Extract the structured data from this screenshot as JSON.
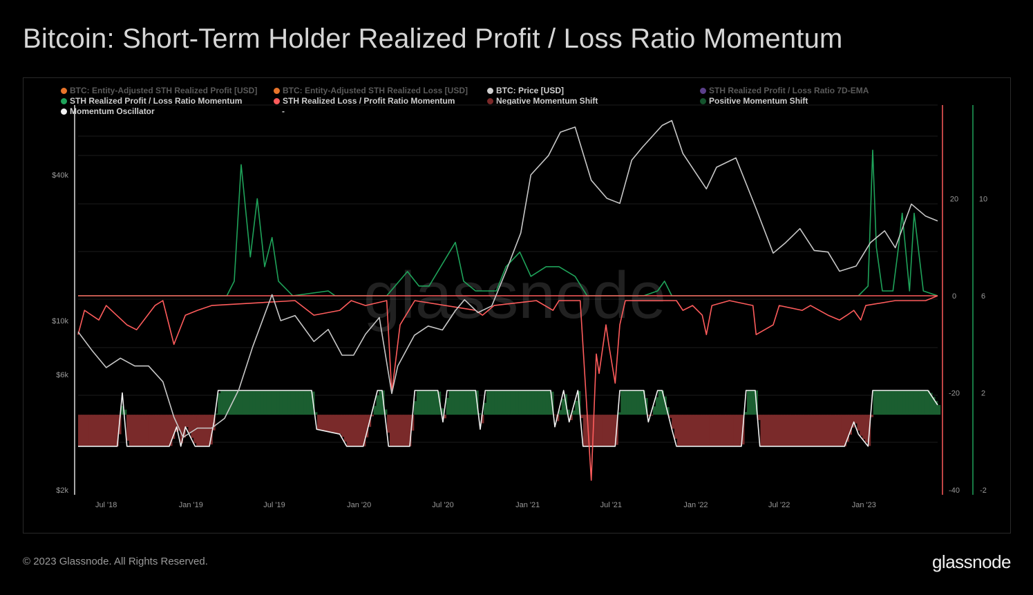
{
  "header": {
    "title": "Bitcoin: Short-Term Holder Realized Profit / Loss Ratio Momentum"
  },
  "legend": [
    {
      "label": "BTC: Entity-Adjusted STH Realized Profit [USD]",
      "color": "#e8742a",
      "dim": true
    },
    {
      "label": "BTC: Entity-Adjusted STH Realized Loss [USD]",
      "color": "#e8742a",
      "dim": true
    },
    {
      "label": "BTC: Price [USD]",
      "color": "#cfcfcf",
      "dim": false
    },
    {
      "label": "STH Realized Profit / Loss Ratio 7D-EMA",
      "color": "#5b3f8a",
      "dim": true
    },
    {
      "label": "STH Realized Profit / Loss Ratio Momentum",
      "color": "#1fa35a",
      "dim": false
    },
    {
      "label": "STH Realized Loss / Profit Ratio Momentum",
      "color": "#ff5c5c",
      "dim": false
    },
    {
      "label": "Negative Momentum Shift",
      "color": "#7a2828",
      "dim": false
    },
    {
      "label": "Positive Momentum Shift",
      "color": "#14532d",
      "dim": false
    },
    {
      "label": "Momentum Oscillator",
      "color": "#f2f2f2",
      "dim": false
    },
    {
      "label": "-",
      "color": "",
      "dim": false
    }
  ],
  "watermark": "glassnode",
  "footer": {
    "copyright": "© 2023 Glassnode. All Rights Reserved.",
    "logo": "glassnode"
  },
  "colors": {
    "price": "#c8c8c8",
    "profit_momentum": "#1fa35a",
    "loss_momentum": "#ff5c5c",
    "negative_shift": "#7a2a2a",
    "positive_shift": "#1b5e30",
    "oscillator": "#f2f2f2",
    "right_axis_red": "#ff5c5c",
    "right_axis_green": "#1fa35a"
  },
  "chart_data": {
    "type": "line",
    "x_ticks": [
      "Jul '18",
      "Jan '19",
      "Jul '19",
      "Jan '20",
      "Jul '20",
      "Jan '21",
      "Jul '21",
      "Jan '22",
      "Jul '22",
      "Jan '23"
    ],
    "x_range": [
      "2018-05-01",
      "2023-06-10"
    ],
    "left_axis": {
      "scale": "log",
      "ticks": [
        "$2k",
        "$6k",
        "$10k",
        "$40k"
      ],
      "tick_values": [
        2000,
        6000,
        10000,
        40000
      ]
    },
    "right_axis_1": {
      "ticks": [
        "20",
        "0",
        "-20",
        "-40"
      ],
      "tick_values": [
        20,
        0,
        -20,
        -40
      ],
      "ylim": [
        -40,
        40
      ]
    },
    "right_axis_2": {
      "ticks": [
        "10",
        "6",
        "2",
        "-2"
      ],
      "tick_values": [
        10,
        6,
        2,
        -2
      ],
      "ylim": [
        -2,
        14
      ]
    },
    "series": [
      {
        "name": "BTC: Price [USD]",
        "axis": "left",
        "x": [
          "2018-05-01",
          "2018-06-01",
          "2018-07-01",
          "2018-08-01",
          "2018-09-01",
          "2018-10-01",
          "2018-11-01",
          "2018-11-25",
          "2018-12-15",
          "2019-01-15",
          "2019-02-15",
          "2019-03-15",
          "2019-04-15",
          "2019-05-15",
          "2019-06-26",
          "2019-07-15",
          "2019-08-15",
          "2019-09-25",
          "2019-10-26",
          "2019-11-25",
          "2019-12-20",
          "2020-01-15",
          "2020-02-14",
          "2020-03-12",
          "2020-03-25",
          "2020-04-30",
          "2020-05-30",
          "2020-06-30",
          "2020-07-28",
          "2020-08-17",
          "2020-09-15",
          "2020-10-15",
          "2020-11-15",
          "2020-12-17",
          "2021-01-08",
          "2021-02-15",
          "2021-03-13",
          "2021-04-14",
          "2021-05-19",
          "2021-06-22",
          "2021-07-20",
          "2021-08-15",
          "2021-09-07",
          "2021-10-20",
          "2021-11-10",
          "2021-12-04",
          "2022-01-24",
          "2022-02-15",
          "2022-03-29",
          "2022-05-12",
          "2022-06-18",
          "2022-07-15",
          "2022-08-15",
          "2022-09-15",
          "2022-10-15",
          "2022-11-09",
          "2022-12-15",
          "2023-01-15",
          "2023-02-15",
          "2023-03-10",
          "2023-04-14",
          "2023-05-15",
          "2023-06-10"
        ],
        "values": [
          9000,
          7500,
          6400,
          7000,
          6500,
          6500,
          5600,
          4000,
          3300,
          3600,
          3600,
          3950,
          5200,
          7800,
          12800,
          10000,
          10500,
          8200,
          9200,
          7200,
          7200,
          8800,
          10300,
          5000,
          6500,
          8700,
          9500,
          9150,
          11000,
          12200,
          10800,
          11500,
          16000,
          23000,
          40000,
          48000,
          60000,
          63000,
          38000,
          32000,
          30500,
          46000,
          52000,
          64000,
          67000,
          49000,
          35000,
          43000,
          47000,
          29000,
          19000,
          21000,
          24000,
          19500,
          19200,
          16000,
          16800,
          21000,
          23500,
          20000,
          30300,
          27000,
          25800
        ]
      },
      {
        "name": "STH Realized Profit / Loss Ratio Momentum",
        "axis": "right_axis_1",
        "x": [
          "2018-05-01",
          "2019-03-20",
          "2019-04-05",
          "2019-04-20",
          "2019-05-10",
          "2019-05-25",
          "2019-06-10",
          "2019-06-26",
          "2019-07-10",
          "2019-08-10",
          "2019-10-26",
          "2019-11-10",
          "2020-03-01",
          "2020-04-15",
          "2020-05-10",
          "2020-06-01",
          "2020-07-28",
          "2020-08-15",
          "2020-09-10",
          "2020-10-25",
          "2020-11-15",
          "2020-12-15",
          "2021-01-08",
          "2021-02-10",
          "2021-03-10",
          "2021-04-14",
          "2021-05-10",
          "2021-09-10",
          "2021-10-10",
          "2021-10-25",
          "2021-11-10",
          "2022-01-01",
          "2022-12-20",
          "2023-01-10",
          "2023-01-20",
          "2023-01-28",
          "2023-02-10",
          "2023-03-05",
          "2023-03-17",
          "2023-03-25",
          "2023-04-10",
          "2023-04-20",
          "2023-05-10",
          "2023-06-10"
        ],
        "values": [
          0,
          0,
          3,
          27,
          8,
          20,
          6,
          12,
          3,
          0,
          1,
          0,
          0,
          5,
          2,
          2,
          11,
          3,
          1,
          1,
          6,
          9,
          4,
          6,
          6,
          4,
          0,
          0,
          1,
          3,
          0,
          0,
          0,
          2,
          30,
          10,
          1,
          1,
          10,
          17,
          1,
          17,
          1,
          0
        ]
      },
      {
        "name": "STH Realized Loss / Profit Ratio Momentum",
        "axis": "right_axis_1",
        "x": [
          "2018-05-01",
          "2018-05-15",
          "2018-06-15",
          "2018-07-01",
          "2018-08-15",
          "2018-09-05",
          "2018-10-15",
          "2018-11-01",
          "2018-11-25",
          "2018-12-20",
          "2019-01-15",
          "2019-02-15",
          "2019-08-15",
          "2019-09-25",
          "2019-11-20",
          "2019-12-15",
          "2020-01-15",
          "2020-03-01",
          "2020-03-12",
          "2020-03-30",
          "2020-05-01",
          "2020-09-10",
          "2020-09-25",
          "2020-10-20",
          "2021-01-20",
          "2021-02-25",
          "2021-03-10",
          "2021-04-25",
          "2021-05-19",
          "2021-05-30",
          "2021-06-05",
          "2021-06-20",
          "2021-06-26",
          "2021-07-10",
          "2021-07-20",
          "2021-08-01",
          "2021-11-20",
          "2021-12-04",
          "2021-12-25",
          "2022-01-15",
          "2022-01-24",
          "2022-02-05",
          "2022-03-15",
          "2022-05-05",
          "2022-05-12",
          "2022-06-18",
          "2022-07-01",
          "2022-08-20",
          "2022-09-07",
          "2022-10-15",
          "2022-11-09",
          "2022-11-25",
          "2022-12-10",
          "2022-12-25",
          "2023-01-05",
          "2023-03-10",
          "2023-04-20",
          "2023-05-15",
          "2023-06-10"
        ],
        "values": [
          -8,
          -3,
          -5,
          -2,
          -6,
          -7,
          -2,
          -1,
          -10,
          -4,
          -3,
          -2,
          -1,
          -4,
          -3,
          -1,
          -2,
          -1,
          -20,
          -6,
          -1,
          -3,
          -4,
          -2,
          -1,
          -3,
          -1,
          -1,
          -38,
          -12,
          -16,
          -6,
          -10,
          -18,
          -6,
          -1,
          -1,
          -3,
          -2,
          -4,
          -8,
          -2,
          -1,
          -2,
          -8,
          -6,
          -2,
          -3,
          -2,
          -4,
          -5,
          -4,
          -3,
          -5,
          -2,
          -1,
          -1,
          -1,
          0
        ]
      },
      {
        "name": "Momentum Oscillator",
        "axis": "right_axis_2",
        "x": [
          "2018-05-01",
          "2018-07-25",
          "2018-08-05",
          "2018-08-15",
          "2018-08-25",
          "2018-11-15",
          "2018-12-01",
          "2018-12-10",
          "2018-12-20",
          "2019-01-10",
          "2019-01-18",
          "2019-02-10",
          "2019-02-20",
          "2019-03-01",
          "2019-09-20",
          "2019-10-01",
          "2019-11-20",
          "2019-12-05",
          "2019-12-15",
          "2020-01-10",
          "2020-02-10",
          "2020-02-20",
          "2020-03-05",
          "2020-04-10",
          "2020-04-20",
          "2020-05-01",
          "2020-06-20",
          "2020-07-01",
          "2020-07-10",
          "2020-09-10",
          "2020-09-20",
          "2020-10-01",
          "2021-02-20",
          "2021-03-01",
          "2021-03-20",
          "2021-04-01",
          "2021-04-20",
          "2021-05-01",
          "2021-05-19",
          "2021-06-01",
          "2021-07-10",
          "2021-07-20",
          "2021-09-10",
          "2021-09-20",
          "2021-10-10",
          "2021-10-20",
          "2021-11-10",
          "2021-11-20",
          "2022-04-10",
          "2022-04-20",
          "2022-05-10",
          "2022-05-20",
          "2022-11-20",
          "2022-12-10",
          "2022-12-20",
          "2023-01-10",
          "2023-01-20",
          "2023-05-20",
          "2023-06-10"
        ],
        "values": [
          -0.2,
          -0.2,
          2.0,
          -0.2,
          -0.2,
          -0.2,
          0.6,
          -0.2,
          0.6,
          -0.2,
          -0.2,
          -0.2,
          0.8,
          2.1,
          2.1,
          0.5,
          0.3,
          -0.2,
          -0.2,
          -0.2,
          2.1,
          2.1,
          -0.2,
          -0.2,
          -0.2,
          2.1,
          2.1,
          0.8,
          2.1,
          2.1,
          0.5,
          2.1,
          2.1,
          0.6,
          2.1,
          0.8,
          2.1,
          -0.2,
          -0.2,
          -0.2,
          -0.2,
          2.1,
          2.1,
          0.8,
          2.1,
          2.1,
          0.5,
          -0.2,
          -0.2,
          2.1,
          2.1,
          -0.2,
          -0.2,
          0.8,
          0.3,
          -0.2,
          2.1,
          2.1,
          1.5
        ]
      }
    ],
    "shift_bands": {
      "positive": {
        "name": "Positive Momentum Shift",
        "value": 2.1
      },
      "negative": {
        "name": "Negative Momentum Shift",
        "value": -0.2
      },
      "baseline": 1.1
    }
  }
}
